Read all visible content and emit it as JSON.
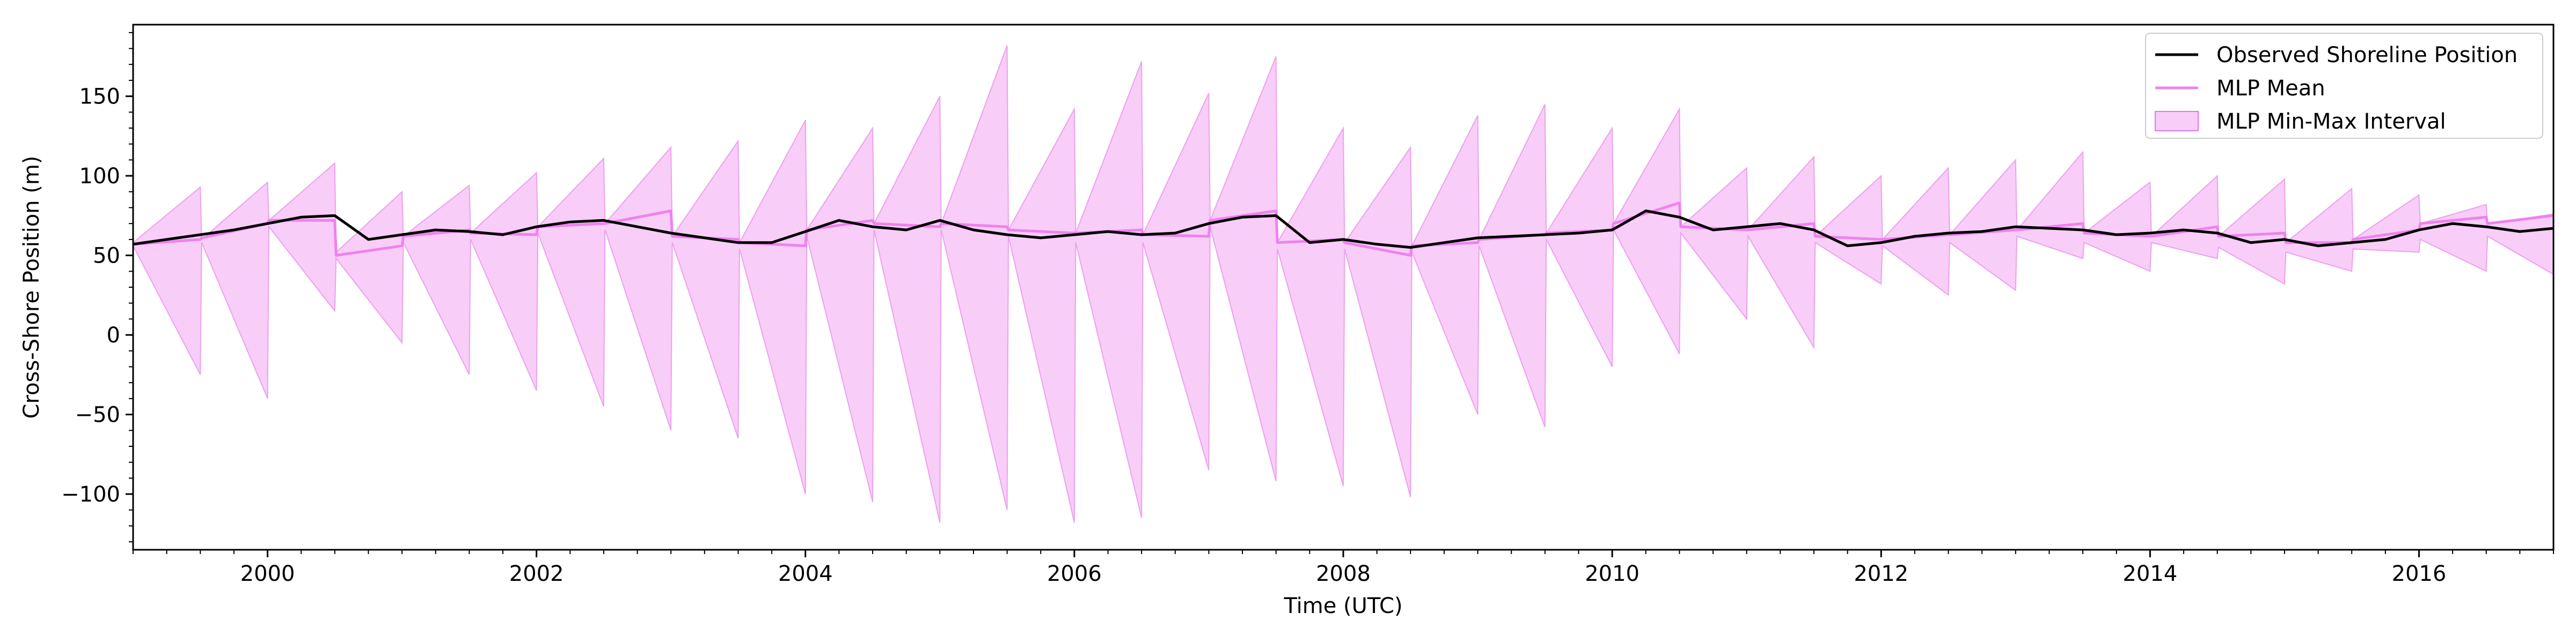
{
  "chart_data": {
    "type": "line",
    "title": "",
    "xlabel": "Time (UTC)",
    "ylabel": "Cross-Shore Position (m)",
    "xlim": [
      1999.0,
      2017.0
    ],
    "ylim": [
      -135,
      195
    ],
    "x_ticks": [
      2000,
      2002,
      2004,
      2006,
      2008,
      2010,
      2012,
      2014,
      2016
    ],
    "x_tick_labels": [
      "2000",
      "2002",
      "2004",
      "2006",
      "2008",
      "2010",
      "2012",
      "2014",
      "2016"
    ],
    "y_ticks": [
      -100,
      -50,
      0,
      50,
      100,
      150
    ],
    "y_tick_labels": [
      "−100",
      "−50",
      "0",
      "50",
      "100",
      "150"
    ],
    "grid": false,
    "legend_position": "top-right",
    "colors": {
      "observed": "#000000",
      "mean": "#ee82ee",
      "interval_fill": "#ee82ee",
      "interval_edge": "#e377e3"
    },
    "series": [
      {
        "name": "Observed Shoreline Position",
        "x": [
          1999.0,
          1999.25,
          1999.5,
          1999.75,
          2000.0,
          2000.25,
          2000.5,
          2000.75,
          2001.0,
          2001.25,
          2001.5,
          2001.75,
          2002.0,
          2002.25,
          2002.5,
          2002.75,
          2003.0,
          2003.25,
          2003.5,
          2003.75,
          2004.0,
          2004.25,
          2004.5,
          2004.75,
          2005.0,
          2005.25,
          2005.5,
          2005.75,
          2006.0,
          2006.25,
          2006.5,
          2006.75,
          2007.0,
          2007.25,
          2007.5,
          2007.75,
          2008.0,
          2008.25,
          2008.5,
          2008.75,
          2009.0,
          2009.25,
          2009.5,
          2009.75,
          2010.0,
          2010.25,
          2010.5,
          2010.75,
          2011.0,
          2011.25,
          2011.5,
          2011.75,
          2012.0,
          2012.25,
          2012.5,
          2012.75,
          2013.0,
          2013.25,
          2013.5,
          2013.75,
          2014.0,
          2014.25,
          2014.5,
          2014.75,
          2015.0,
          2015.25,
          2015.5,
          2015.75,
          2016.0,
          2016.25,
          2016.5,
          2016.75,
          2017.0
        ],
        "values": [
          57,
          60,
          63,
          66,
          70,
          74,
          75,
          60,
          63,
          66,
          65,
          63,
          68,
          71,
          72,
          68,
          64,
          61,
          58,
          58,
          65,
          72,
          68,
          66,
          72,
          66,
          63,
          61,
          63,
          65,
          63,
          64,
          70,
          74,
          75,
          58,
          60,
          57,
          55,
          58,
          61,
          62,
          63,
          64,
          66,
          78,
          74,
          66,
          68,
          70,
          66,
          56,
          58,
          62,
          64,
          65,
          68,
          67,
          66,
          63,
          64,
          66,
          64,
          58,
          60,
          56,
          58,
          60,
          66,
          70,
          68,
          65,
          67
        ]
      },
      {
        "name": "MLP Mean",
        "x": [
          1999.0,
          1999.5,
          1999.51,
          2000.0,
          2000.01,
          2000.5,
          2000.51,
          2001.0,
          2001.01,
          2001.5,
          2001.51,
          2002.0,
          2002.01,
          2002.5,
          2002.51,
          2003.0,
          2003.01,
          2003.5,
          2003.51,
          2004.0,
          2004.01,
          2004.5,
          2004.51,
          2005.0,
          2005.01,
          2005.5,
          2005.51,
          2006.0,
          2006.01,
          2006.5,
          2006.51,
          2007.0,
          2007.01,
          2007.5,
          2007.51,
          2008.0,
          2008.01,
          2008.5,
          2008.51,
          2009.0,
          2009.01,
          2009.5,
          2009.51,
          2010.0,
          2010.01,
          2010.5,
          2010.51,
          2011.0,
          2011.01,
          2011.5,
          2011.51,
          2012.0,
          2012.01,
          2012.5,
          2012.51,
          2013.0,
          2013.01,
          2013.5,
          2013.51,
          2014.0,
          2014.01,
          2014.5,
          2014.51,
          2015.0,
          2015.01,
          2015.5,
          2015.51,
          2016.0,
          2016.01,
          2016.5,
          2016.51,
          2017.0
        ],
        "values": [
          57,
          60,
          61,
          70,
          72,
          72,
          50,
          56,
          62,
          66,
          64,
          63,
          68,
          70,
          70,
          78,
          62,
          60,
          58,
          56,
          66,
          72,
          70,
          68,
          70,
          68,
          66,
          64,
          64,
          66,
          63,
          62,
          72,
          78,
          58,
          60,
          58,
          50,
          56,
          58,
          60,
          63,
          64,
          66,
          70,
          83,
          68,
          66,
          66,
          70,
          62,
          60,
          60,
          63,
          63,
          66,
          66,
          70,
          64,
          62,
          62,
          68,
          62,
          64,
          58,
          58,
          60,
          66,
          70,
          74,
          70,
          75
        ]
      },
      {
        "name": "MLP Min-Max Interval",
        "x": [
          1999.0,
          1999.5,
          1999.51,
          2000.0,
          2000.01,
          2000.5,
          2000.51,
          2001.0,
          2001.01,
          2001.5,
          2001.51,
          2002.0,
          2002.01,
          2002.5,
          2002.51,
          2003.0,
          2003.01,
          2003.5,
          2003.51,
          2004.0,
          2004.01,
          2004.5,
          2004.51,
          2005.0,
          2005.01,
          2005.5,
          2005.51,
          2006.0,
          2006.01,
          2006.5,
          2006.51,
          2007.0,
          2007.01,
          2007.5,
          2007.51,
          2008.0,
          2008.01,
          2008.5,
          2008.51,
          2009.0,
          2009.01,
          2009.5,
          2009.51,
          2010.0,
          2010.01,
          2010.5,
          2010.51,
          2011.0,
          2011.01,
          2011.5,
          2011.51,
          2012.0,
          2012.01,
          2012.5,
          2012.51,
          2013.0,
          2013.01,
          2013.5,
          2013.51,
          2014.0,
          2014.01,
          2014.5,
          2014.51,
          2015.0,
          2015.01,
          2015.5,
          2015.51,
          2016.0,
          2016.01,
          2016.5,
          2016.51,
          2017.0
        ],
        "upper": [
          58,
          93,
          60,
          96,
          72,
          108,
          52,
          90,
          62,
          94,
          64,
          102,
          68,
          111,
          70,
          118,
          62,
          122,
          58,
          135,
          66,
          130,
          70,
          150,
          70,
          182,
          66,
          142,
          64,
          172,
          63,
          152,
          72,
          175,
          58,
          130,
          58,
          118,
          56,
          138,
          60,
          145,
          64,
          130,
          70,
          142,
          68,
          105,
          66,
          112,
          62,
          100,
          60,
          105,
          63,
          110,
          66,
          115,
          64,
          96,
          62,
          100,
          62,
          98,
          58,
          92,
          60,
          88,
          70,
          82,
          70,
          76
        ],
        "lower": [
          56,
          -25,
          58,
          -40,
          68,
          15,
          48,
          -5,
          58,
          -25,
          60,
          -35,
          64,
          -45,
          66,
          -60,
          58,
          -65,
          54,
          -100,
          62,
          -105,
          66,
          -118,
          66,
          -110,
          62,
          -118,
          58,
          -115,
          58,
          -85,
          68,
          -92,
          54,
          -95,
          54,
          -102,
          52,
          -50,
          56,
          -58,
          60,
          -20,
          66,
          -12,
          64,
          10,
          62,
          -8,
          58,
          32,
          56,
          25,
          58,
          28,
          62,
          48,
          58,
          40,
          58,
          48,
          55,
          32,
          52,
          40,
          54,
          52,
          60,
          40,
          62,
          38
        ]
      }
    ]
  }
}
